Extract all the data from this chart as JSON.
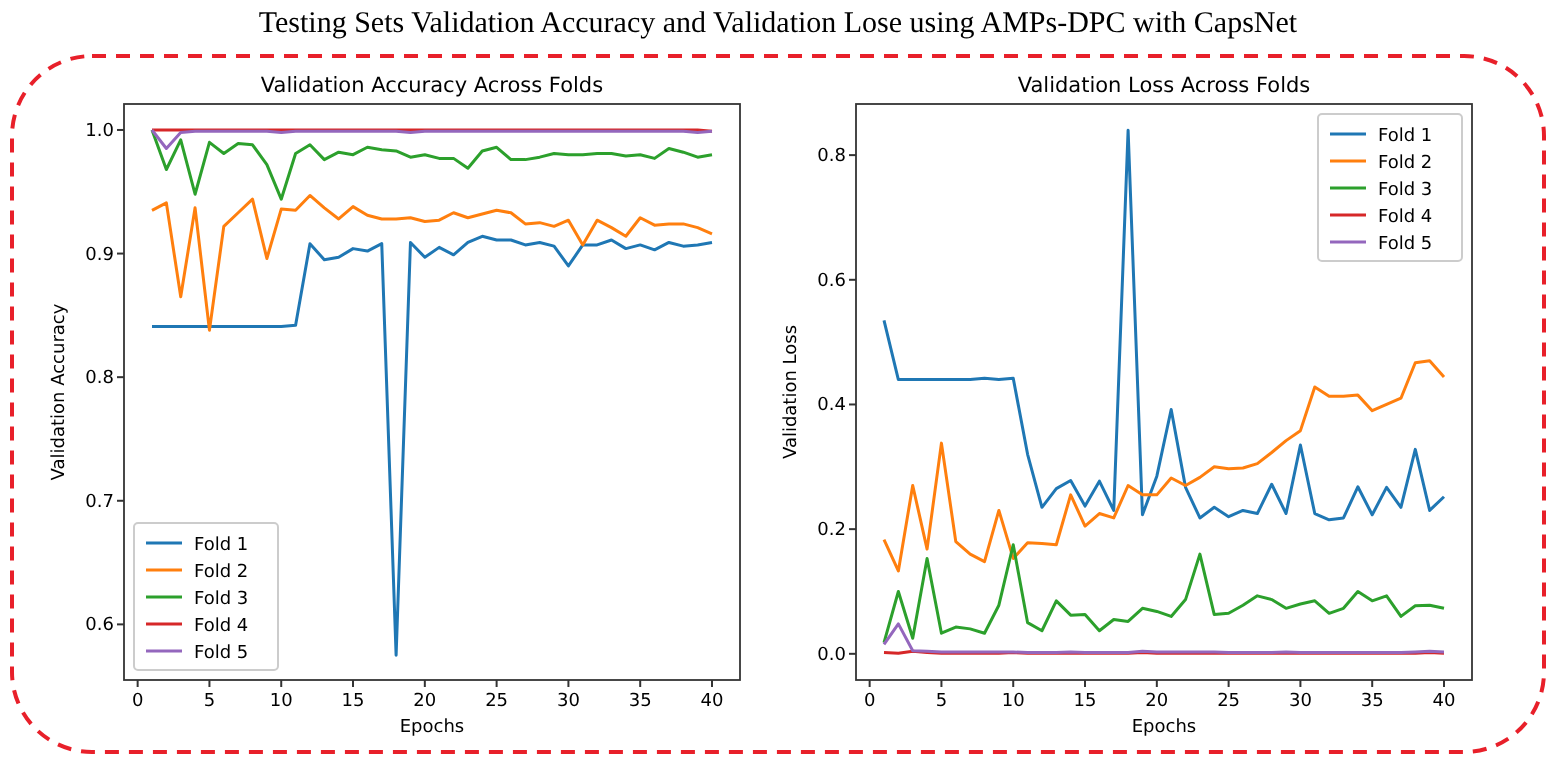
{
  "chart_data": [
    {
      "type": "line",
      "annotations": [
        "Testing Sets Validation Accuracy and Validation Lose using AMPs-DPC with CapsNet"
      ],
      "title": "Validation Accuracy Across Folds",
      "xlabel": "Epochs",
      "ylabel": "Validation Accuracy",
      "x": [
        1,
        2,
        3,
        4,
        5,
        6,
        7,
        8,
        9,
        10,
        11,
        12,
        13,
        14,
        15,
        16,
        17,
        18,
        19,
        20,
        21,
        22,
        23,
        24,
        25,
        26,
        27,
        28,
        29,
        30,
        31,
        32,
        33,
        34,
        35,
        36,
        37,
        38,
        39,
        40
      ],
      "xlim": [
        -0.95,
        41.95
      ],
      "xticks": [
        0,
        5,
        10,
        15,
        20,
        25,
        30,
        35,
        40
      ],
      "ylim": [
        0.555,
        1.021
      ],
      "yticks": [
        {
          "value": 0.6,
          "label": "0.6"
        },
        {
          "value": 0.7,
          "label": "0.7"
        },
        {
          "value": 0.8,
          "label": "0.8"
        },
        {
          "value": 0.9,
          "label": "0.9"
        },
        {
          "value": 1.0,
          "label": "1.0"
        }
      ],
      "legend": "bottom left",
      "series": [
        {
          "name": "Fold 1",
          "color": "#1f77b4",
          "values": [
            0.841,
            0.841,
            0.841,
            0.841,
            0.841,
            0.841,
            0.841,
            0.841,
            0.841,
            0.841,
            0.842,
            0.908,
            0.895,
            0.897,
            0.904,
            0.902,
            0.908,
            0.575,
            0.909,
            0.897,
            0.905,
            0.899,
            0.909,
            0.914,
            0.911,
            0.911,
            0.907,
            0.909,
            0.906,
            0.89,
            0.907,
            0.907,
            0.911,
            0.904,
            0.907,
            0.903,
            0.909,
            0.906,
            0.907,
            0.909
          ]
        },
        {
          "name": "Fold 2",
          "color": "#ff7f0e",
          "values": [
            0.935,
            0.941,
            0.865,
            0.937,
            0.838,
            0.922,
            0.933,
            0.944,
            0.896,
            0.936,
            0.935,
            0.947,
            0.937,
            0.928,
            0.938,
            0.931,
            0.928,
            0.928,
            0.929,
            0.926,
            0.927,
            0.933,
            0.929,
            0.932,
            0.935,
            0.933,
            0.924,
            0.925,
            0.922,
            0.927,
            0.907,
            0.927,
            0.921,
            0.914,
            0.929,
            0.923,
            0.924,
            0.924,
            0.921,
            0.916
          ]
        },
        {
          "name": "Fold 3",
          "color": "#2ca02c",
          "values": [
            1.0,
            0.968,
            0.992,
            0.948,
            0.99,
            0.981,
            0.989,
            0.988,
            0.972,
            0.944,
            0.981,
            0.988,
            0.976,
            0.982,
            0.98,
            0.986,
            0.984,
            0.983,
            0.978,
            0.98,
            0.977,
            0.977,
            0.969,
            0.983,
            0.986,
            0.976,
            0.976,
            0.978,
            0.981,
            0.98,
            0.98,
            0.981,
            0.981,
            0.979,
            0.98,
            0.977,
            0.985,
            0.982,
            0.978,
            0.98
          ]
        },
        {
          "name": "Fold 4",
          "color": "#d62728",
          "values": [
            1.0,
            1.0,
            1.0,
            1.0,
            1.0,
            1.0,
            1.0,
            1.0,
            1.0,
            1.0,
            1.0,
            1.0,
            1.0,
            1.0,
            1.0,
            1.0,
            1.0,
            1.0,
            1.0,
            1.0,
            1.0,
            1.0,
            1.0,
            1.0,
            1.0,
            1.0,
            1.0,
            1.0,
            1.0,
            1.0,
            1.0,
            1.0,
            1.0,
            1.0,
            1.0,
            1.0,
            1.0,
            1.0,
            1.0,
            0.999
          ]
        },
        {
          "name": "Fold 5",
          "color": "#9467bd",
          "values": [
            1.0,
            0.985,
            0.998,
            0.999,
            0.999,
            0.999,
            0.999,
            0.999,
            0.999,
            0.998,
            0.999,
            0.999,
            0.999,
            0.999,
            0.999,
            0.999,
            0.999,
            0.999,
            0.998,
            0.999,
            0.999,
            0.999,
            0.999,
            0.999,
            0.999,
            0.999,
            0.999,
            0.999,
            0.999,
            0.999,
            0.999,
            0.999,
            0.999,
            0.999,
            0.999,
            0.999,
            0.999,
            0.999,
            0.998,
            0.999
          ]
        }
      ]
    },
    {
      "type": "line",
      "title": "Validation Loss Across Folds",
      "xlabel": "Epochs",
      "ylabel": "Validation Loss",
      "x": [
        1,
        2,
        3,
        4,
        5,
        6,
        7,
        8,
        9,
        10,
        11,
        12,
        13,
        14,
        15,
        16,
        17,
        18,
        19,
        20,
        21,
        22,
        23,
        24,
        25,
        26,
        27,
        28,
        29,
        30,
        31,
        32,
        33,
        34,
        35,
        36,
        37,
        38,
        39,
        40
      ],
      "xlim": [
        -0.95,
        41.95
      ],
      "xticks": [
        0,
        5,
        10,
        15,
        20,
        25,
        30,
        35,
        40
      ],
      "ylim": [
        -0.042,
        0.882
      ],
      "yticks": [
        {
          "value": 0,
          "label": "0.0"
        },
        {
          "value": 0.2,
          "label": "0.2"
        },
        {
          "value": 0.4,
          "label": "0.4"
        },
        {
          "value": 0.6,
          "label": "0.6"
        },
        {
          "value": 0.8,
          "label": "0.8"
        }
      ],
      "legend": "top right",
      "series": [
        {
          "name": "Fold 1",
          "color": "#1f77b4",
          "values": [
            0.535,
            0.44,
            0.44,
            0.44,
            0.44,
            0.44,
            0.44,
            0.442,
            0.44,
            0.442,
            0.32,
            0.235,
            0.265,
            0.278,
            0.237,
            0.277,
            0.23,
            0.84,
            0.223,
            0.285,
            0.392,
            0.267,
            0.218,
            0.235,
            0.22,
            0.23,
            0.225,
            0.272,
            0.225,
            0.335,
            0.225,
            0.215,
            0.218,
            0.268,
            0.223,
            0.267,
            0.235,
            0.328,
            0.23,
            0.252
          ]
        },
        {
          "name": "Fold 2",
          "color": "#ff7f0e",
          "values": [
            0.183,
            0.133,
            0.27,
            0.168,
            0.338,
            0.18,
            0.16,
            0.148,
            0.23,
            0.153,
            0.178,
            0.177,
            0.175,
            0.255,
            0.205,
            0.225,
            0.218,
            0.27,
            0.255,
            0.255,
            0.282,
            0.27,
            0.283,
            0.3,
            0.297,
            0.298,
            0.305,
            0.323,
            0.342,
            0.358,
            0.428,
            0.413,
            0.413,
            0.415,
            0.39,
            0.4,
            0.41,
            0.467,
            0.47,
            0.444
          ]
        },
        {
          "name": "Fold 3",
          "color": "#2ca02c",
          "values": [
            0.018,
            0.1,
            0.025,
            0.153,
            0.033,
            0.043,
            0.04,
            0.033,
            0.078,
            0.175,
            0.05,
            0.037,
            0.085,
            0.062,
            0.063,
            0.037,
            0.055,
            0.052,
            0.073,
            0.068,
            0.06,
            0.087,
            0.16,
            0.063,
            0.065,
            0.078,
            0.093,
            0.087,
            0.073,
            0.08,
            0.085,
            0.065,
            0.073,
            0.1,
            0.085,
            0.093,
            0.06,
            0.077,
            0.078,
            0.073
          ]
        },
        {
          "name": "Fold 4",
          "color": "#d62728",
          "values": [
            0.002,
            0.001,
            0.004,
            0.002,
            0.001,
            0.001,
            0.001,
            0.001,
            0.001,
            0.002,
            0.001,
            0.001,
            0.001,
            0.001,
            0.001,
            0.001,
            0.001,
            0.001,
            0.002,
            0.001,
            0.001,
            0.001,
            0.001,
            0.001,
            0.001,
            0.001,
            0.001,
            0.001,
            0.001,
            0.001,
            0.001,
            0.001,
            0.001,
            0.001,
            0.001,
            0.001,
            0.001,
            0.001,
            0.002,
            0.001
          ]
        },
        {
          "name": "Fold 5",
          "color": "#9467bd",
          "values": [
            0.015,
            0.048,
            0.005,
            0.004,
            0.003,
            0.003,
            0.003,
            0.003,
            0.003,
            0.003,
            0.002,
            0.002,
            0.002,
            0.003,
            0.002,
            0.002,
            0.002,
            0.002,
            0.004,
            0.003,
            0.003,
            0.003,
            0.003,
            0.003,
            0.002,
            0.002,
            0.002,
            0.002,
            0.003,
            0.002,
            0.002,
            0.002,
            0.002,
            0.002,
            0.002,
            0.002,
            0.002,
            0.003,
            0.004,
            0.003
          ]
        }
      ]
    }
  ]
}
